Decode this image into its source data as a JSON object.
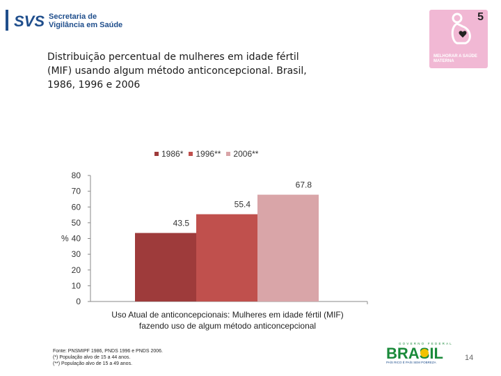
{
  "header": {
    "logo_abbr": "SVS",
    "logo_text_line1": "Secretaria de",
    "logo_text_line2": "Vigilância em Saúde"
  },
  "mdg_badge": {
    "number": "5",
    "caption_line1": "MELHORAR A SAÚDE",
    "caption_line2": "MATERNA"
  },
  "title_lines": [
    "Distribuição percentual de mulheres em idade fértil",
    "(MIF) usando algum método anticoncepcional. Brasil,",
    "1986, 1996 e 2006"
  ],
  "chart_data": {
    "type": "bar",
    "title": "Distribuição percentual de mulheres em idade fértil (MIF) usando algum método anticoncepcional. Brasil, 1986, 1996 e 2006",
    "categories": [
      "Uso Atual de anticoncepcionais: Mulheres em idade fértil (MIF) fazendo uso de algum método anticoncepcional"
    ],
    "series": [
      {
        "name": "1986*",
        "values": [
          43.5
        ],
        "color": "#9e3b3b"
      },
      {
        "name": "1996**",
        "values": [
          55.4
        ],
        "color": "#c0504d"
      },
      {
        "name": "2006**",
        "values": [
          67.8
        ],
        "color": "#d9a5a8"
      }
    ],
    "data_labels": [
      "43.5",
      "55.4",
      "67.8"
    ],
    "xlabel_lines": [
      "Uso Atual de anticoncepcionais: Mulheres em idade fértil (MIF)",
      "fazendo uso de algum método anticoncepcional"
    ],
    "ylabel": "%",
    "ylim": [
      0,
      80
    ],
    "yticks": [
      0,
      10,
      20,
      30,
      40,
      50,
      60,
      70,
      80
    ],
    "grid": false,
    "legend_position": "top"
  },
  "footnotes": [
    "Fonte: PNSMIPF 1986, PNDS 1996 e PNDS 2006.",
    "(*) População alvo de 15 a 44 anos.",
    "(**) População alvo de 15 a 49 anos."
  ],
  "brand": {
    "top_text": "GOVERNO FEDERAL",
    "word": "BRASIL",
    "slogan": "PAÍS RICO É PAÍS SEM POBREZA"
  },
  "page_number": "14",
  "colors": {
    "brand_blue": "#1f4e8c",
    "mdg_pink": "#f1b8d4",
    "brasil_green": "#1a8a3a",
    "brasil_yellow": "#f2c200"
  }
}
